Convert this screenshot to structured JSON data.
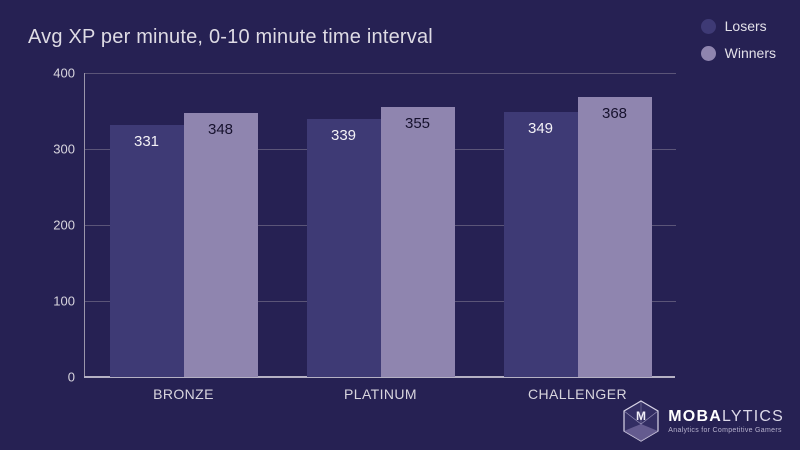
{
  "title": "Avg XP per minute, 0-10 minute time interval",
  "legend": {
    "items": [
      {
        "label": "Losers",
        "color": "#3e3a75"
      },
      {
        "label": "Winners",
        "color": "#8f85af"
      }
    ]
  },
  "chart_data": {
    "type": "bar",
    "title": "Avg XP per minute, 0-10 minute time interval",
    "categories": [
      "BRONZE",
      "PLATINUM",
      "CHALLENGER"
    ],
    "series": [
      {
        "name": "Losers",
        "values": [
          331,
          339,
          349
        ],
        "color": "#3e3a75",
        "label_color": "#f3f1f6"
      },
      {
        "name": "Winners",
        "values": [
          348,
          355,
          368
        ],
        "color": "#8f85af",
        "label_color": "#17122e"
      }
    ],
    "xlabel": "",
    "ylabel": "",
    "ylim": [
      0,
      400
    ],
    "yticks": [
      0,
      100,
      200,
      300,
      400
    ],
    "grid": true,
    "legend_position": "top-right"
  },
  "footer": {
    "brand_bold": "MOBA",
    "brand_light": "LYTICS",
    "tagline": "Analytics for Competitive Gamers",
    "logo_letter": "M"
  },
  "colors": {
    "background": "#262153",
    "title_text": "#dedbe4",
    "tick_text": "#d8d5de",
    "grid": "#5b5578",
    "axis_left": "#9a95ab",
    "axis_bottom": "#b5b1c4",
    "legend_text": "#e2e0e8"
  }
}
